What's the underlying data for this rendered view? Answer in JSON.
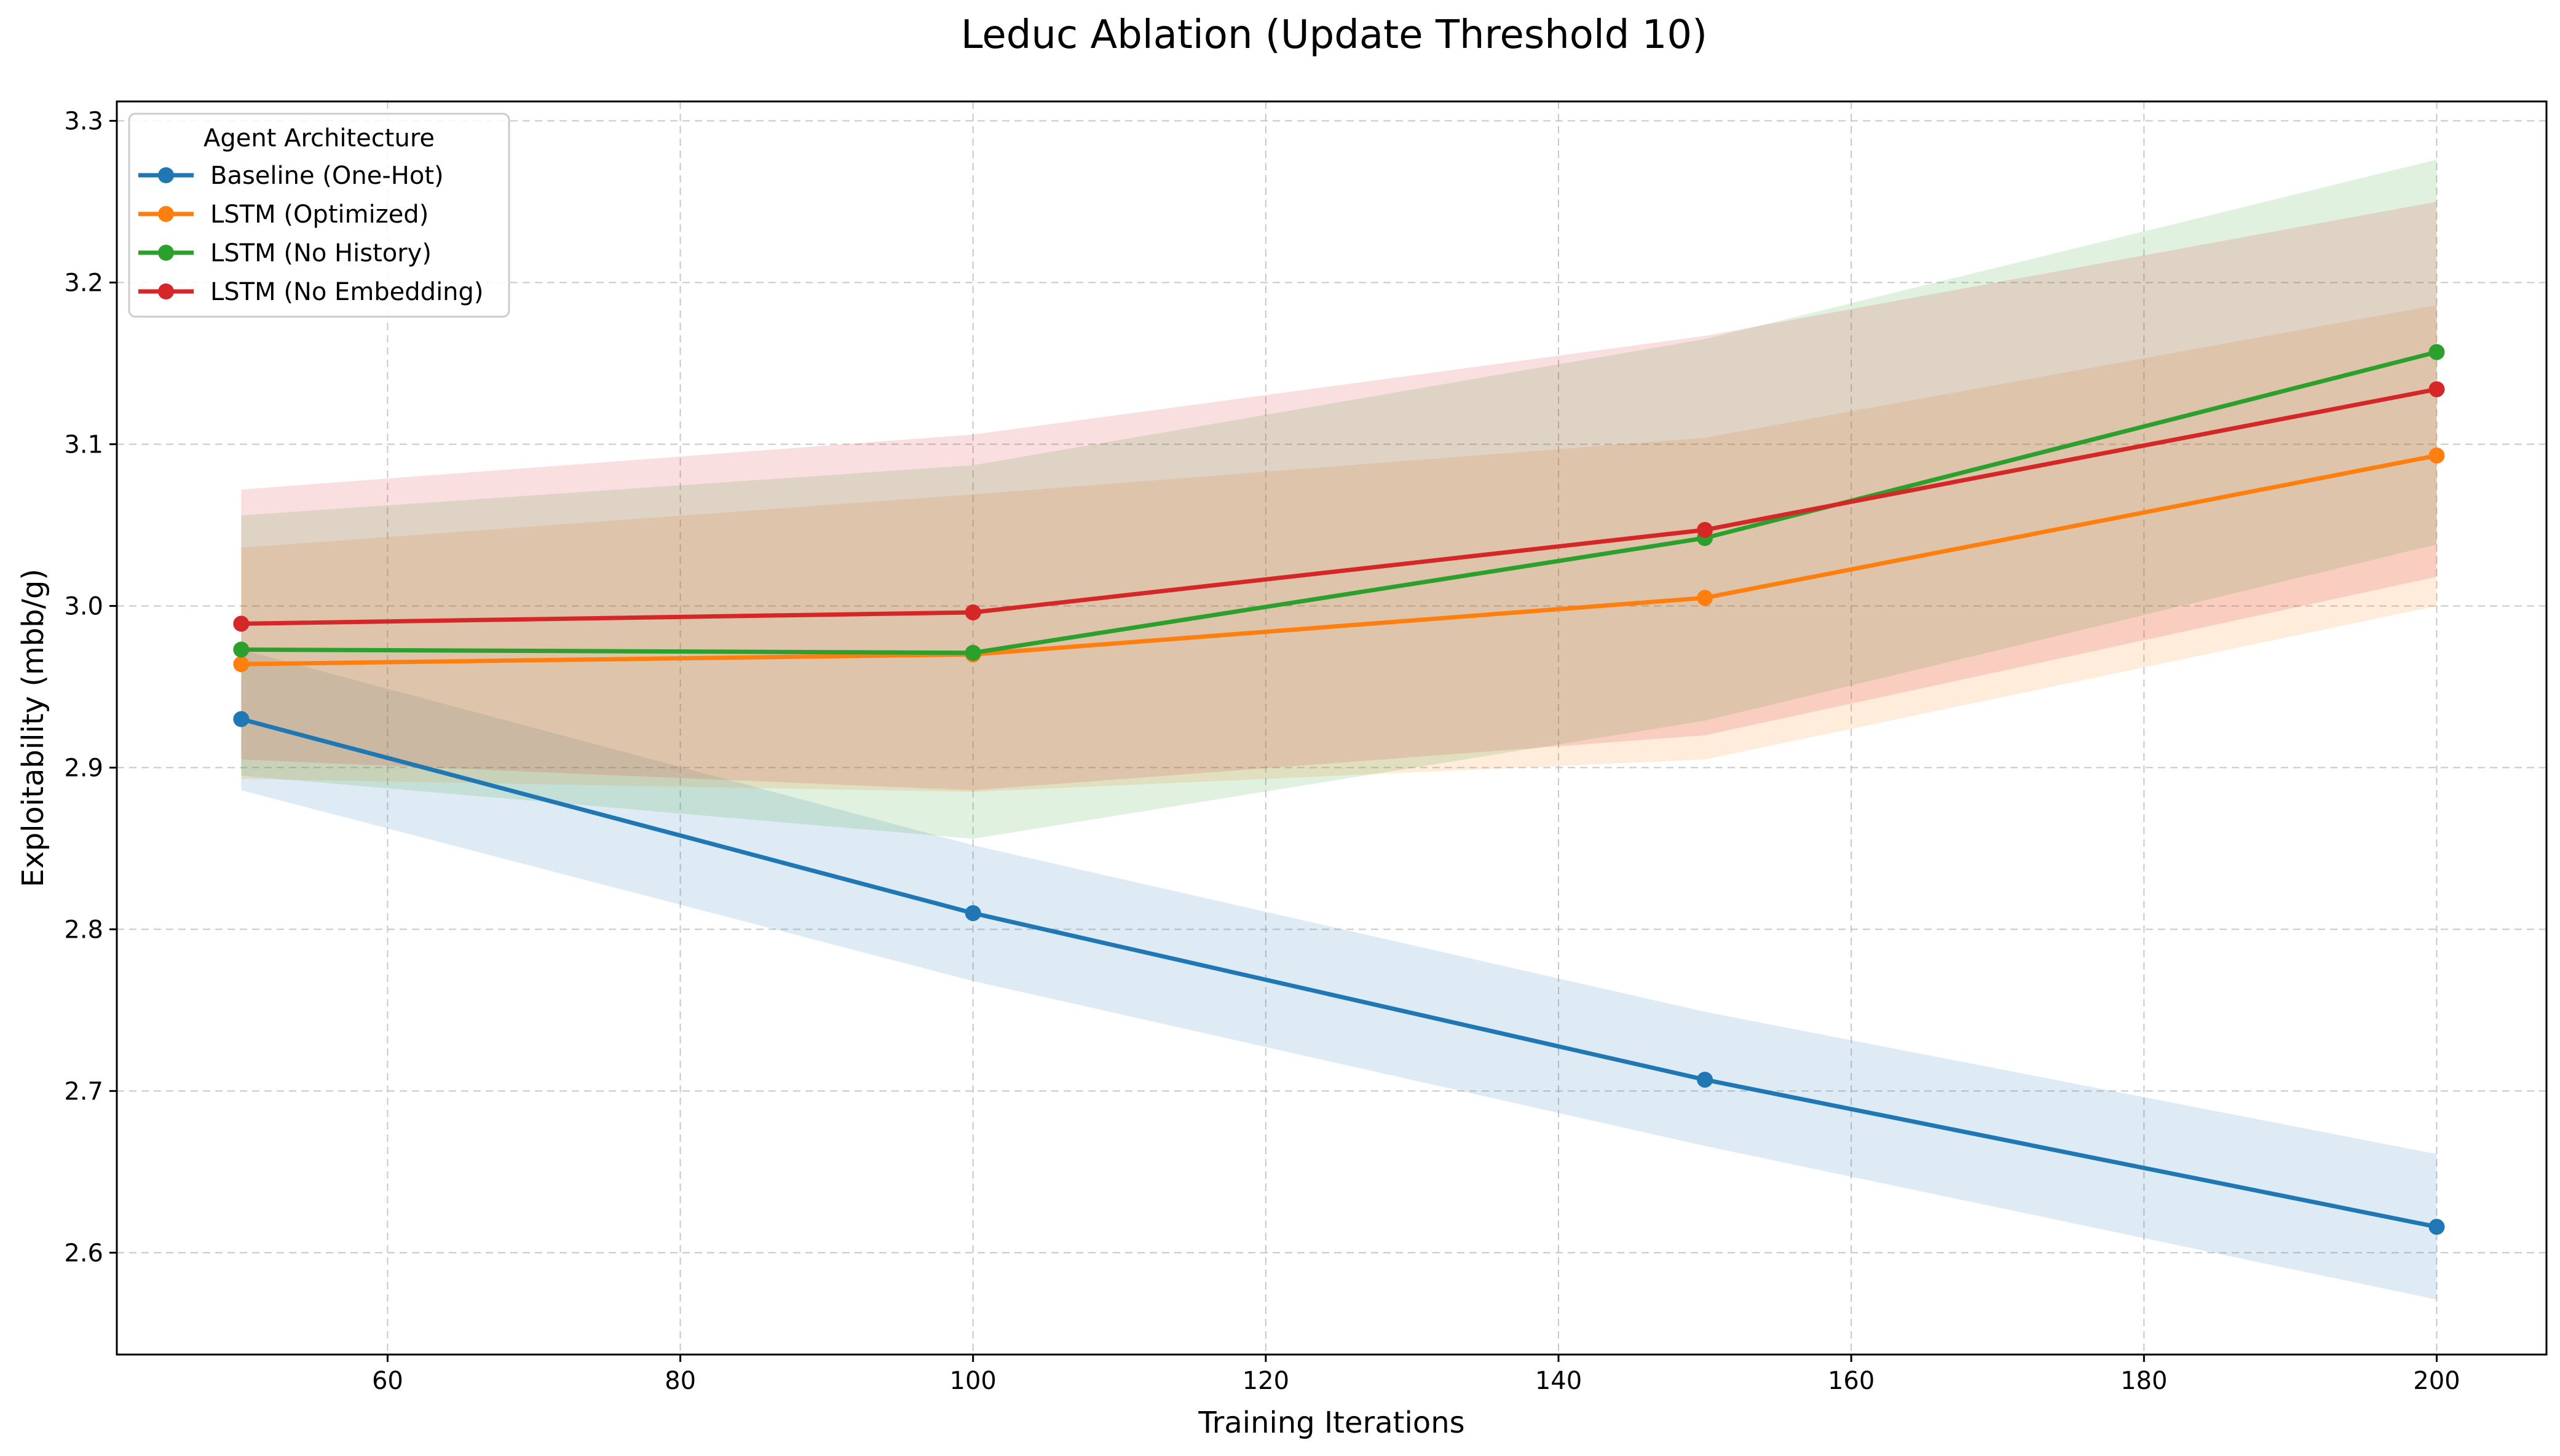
{
  "chart_data": {
    "type": "line",
    "title": "Leduc Ablation (Update Threshold 10)",
    "xlabel": "Training Iterations",
    "ylabel": "Exploitability (mbb/g)",
    "xlim": [
      41.5,
      207.5
    ],
    "ylim": [
      2.537,
      3.312
    ],
    "xticks": [
      60,
      80,
      100,
      120,
      140,
      160,
      180,
      200
    ],
    "yticks": [
      2.6,
      2.7,
      2.8,
      2.9,
      3.0,
      3.1,
      3.2,
      3.3
    ],
    "xtick_labels": [
      "60",
      "80",
      "100",
      "120",
      "140",
      "160",
      "180",
      "200"
    ],
    "ytick_labels": [
      "2.6",
      "2.7",
      "2.8",
      "2.9",
      "3.0",
      "3.1",
      "3.2",
      "3.3"
    ],
    "grid": true,
    "legend": {
      "title": "Agent Architecture",
      "placement": "top-left"
    },
    "x": [
      50,
      100,
      150,
      200
    ],
    "series": [
      {
        "name": "Baseline (One-Hot)",
        "color": "#1f77b4",
        "values": [
          2.93,
          2.81,
          2.707,
          2.616
        ],
        "lower": [
          2.886,
          2.768,
          2.666,
          2.571
        ],
        "upper": [
          2.973,
          2.852,
          2.749,
          2.661
        ]
      },
      {
        "name": "LSTM (Optimized)",
        "color": "#ff7f0e",
        "values": [
          2.964,
          2.97,
          3.005,
          3.093
        ],
        "lower": [
          2.893,
          2.885,
          2.905,
          3.0
        ],
        "upper": [
          3.036,
          3.069,
          3.104,
          3.186
        ]
      },
      {
        "name": "LSTM (No History)",
        "color": "#2ca02c",
        "values": [
          2.973,
          2.971,
          3.042,
          3.157
        ],
        "lower": [
          2.895,
          2.856,
          2.929,
          3.038
        ],
        "upper": [
          3.056,
          3.087,
          3.165,
          3.276
        ]
      },
      {
        "name": "LSTM (No Embedding)",
        "color": "#d62728",
        "values": [
          2.989,
          2.996,
          3.047,
          3.134
        ],
        "lower": [
          2.905,
          2.886,
          2.92,
          3.018
        ],
        "upper": [
          3.072,
          3.106,
          3.167,
          3.25
        ]
      }
    ]
  }
}
